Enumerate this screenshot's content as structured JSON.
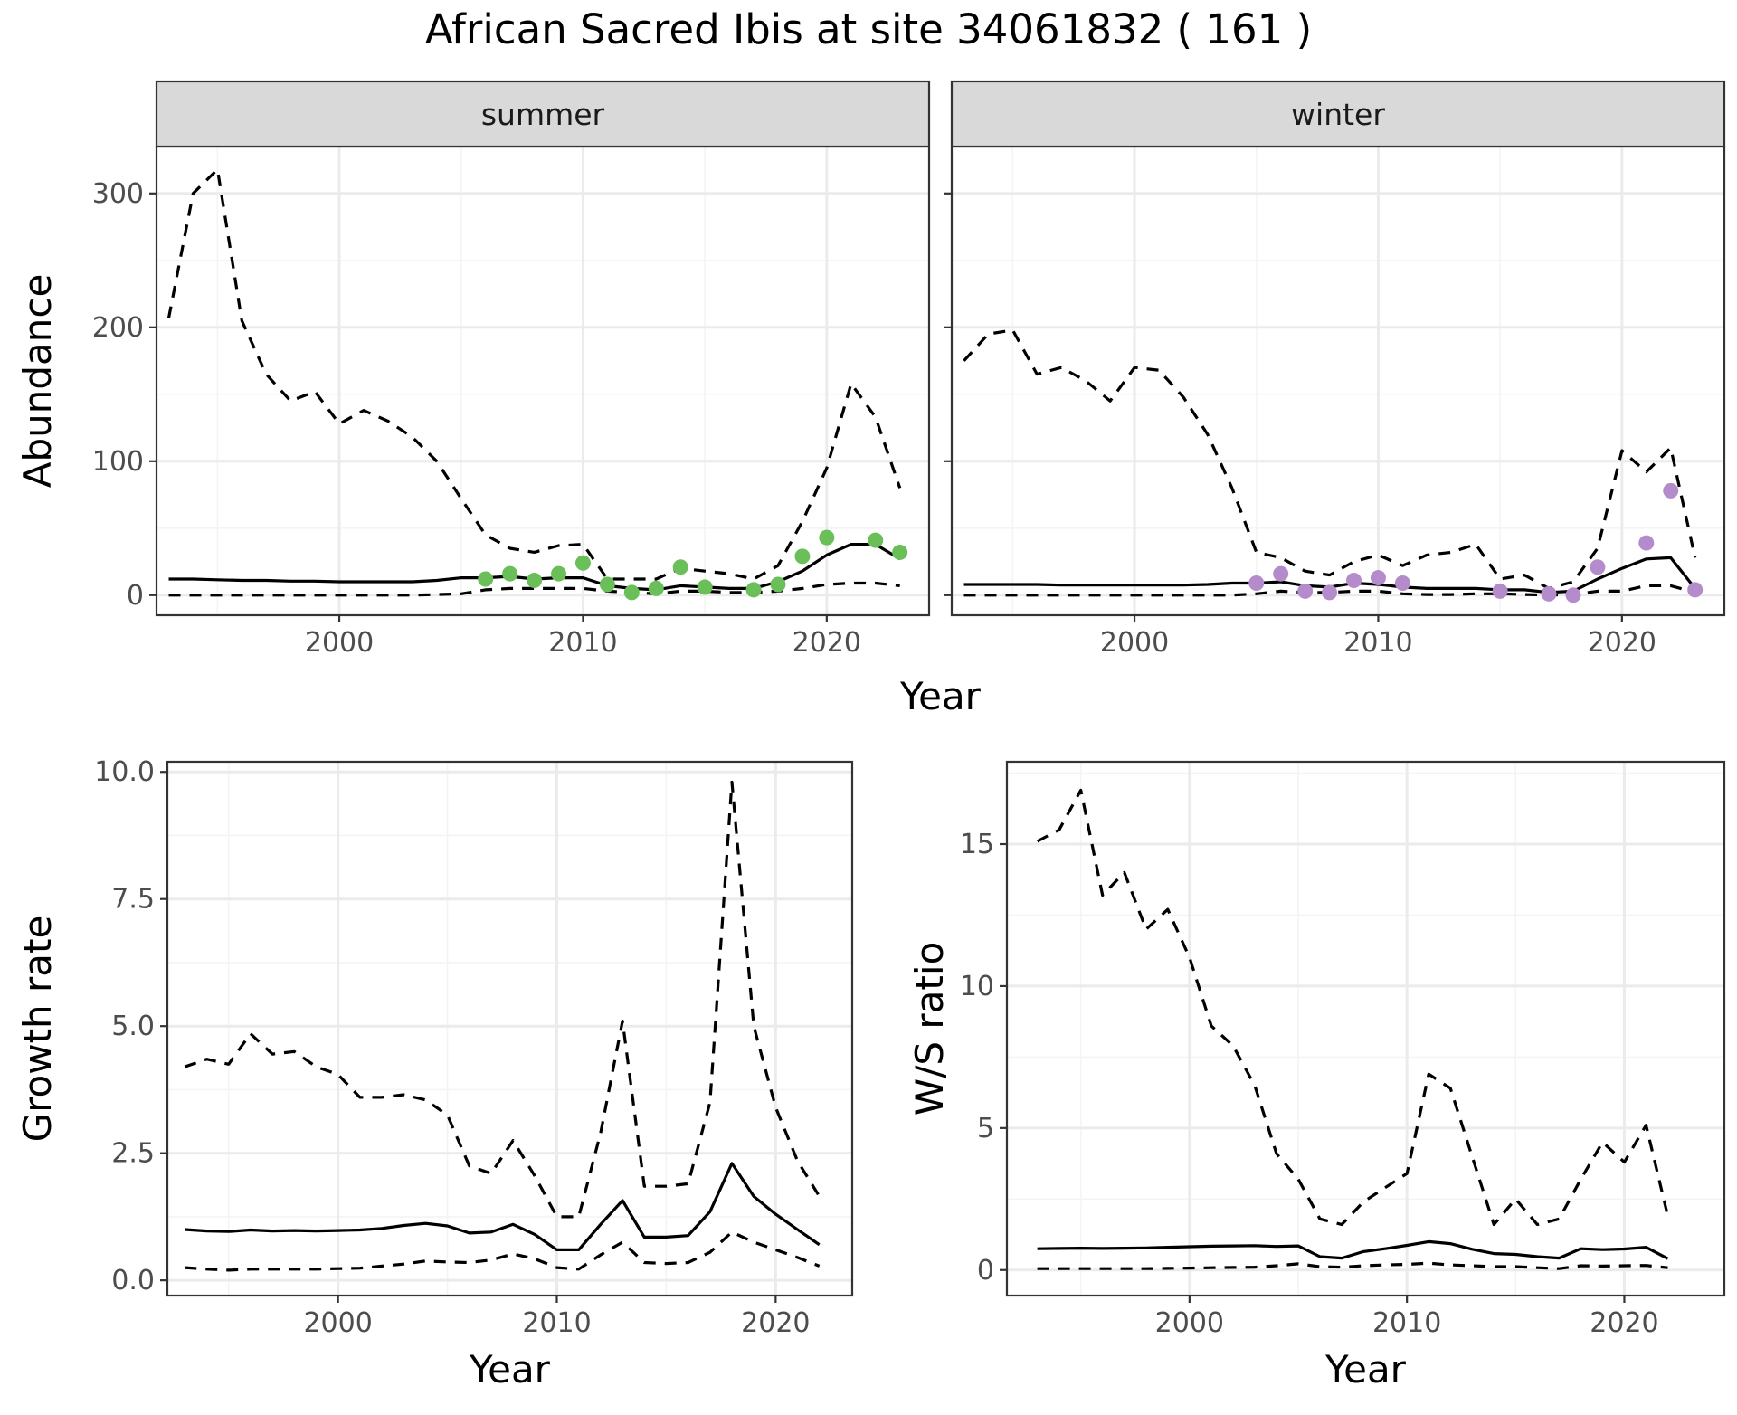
{
  "figure": {
    "title": "African Sacred Ibis at site 34061832 ( 161 )"
  },
  "colors": {
    "summer_points": "#6ABF59",
    "winter_points": "#B48CCB",
    "line": "#000000",
    "grid_major": "#EBEBEB",
    "grid_minor": "#F4F4F4",
    "strip_bg": "#D9D9D9"
  },
  "chart_data": [
    {
      "type": "line",
      "panel": "summer",
      "strip_label": "summer",
      "ylabel": "Abundance",
      "xlabel": "Year",
      "xlim": [
        1992.5,
        2024.2
      ],
      "ylim": [
        -15,
        335
      ],
      "xticks": [
        2000,
        2010,
        2020
      ],
      "xtick_labels": [
        "2000",
        "2010",
        "2020"
      ],
      "yticks": [
        0,
        100,
        200,
        300
      ],
      "ytick_labels": [
        "0",
        "100",
        "200",
        "300"
      ],
      "grid": true,
      "series": [
        {
          "role": "upper",
          "style": "dashed",
          "x": [
            1993,
            1994,
            1995,
            1996,
            1997,
            1998,
            1999,
            2000,
            2001,
            2002,
            2003,
            2004,
            2005,
            2006,
            2007,
            2008,
            2009,
            2010,
            2011,
            2012,
            2013,
            2014,
            2015,
            2016,
            2017,
            2018,
            2019,
            2020,
            2021,
            2022,
            2023
          ],
          "y": [
            207,
            300,
            318,
            205,
            165,
            145,
            152,
            128,
            138,
            130,
            118,
            100,
            72,
            45,
            35,
            32,
            37,
            38,
            12,
            12,
            12,
            20,
            18,
            16,
            12,
            22,
            55,
            95,
            158,
            133,
            80
          ]
        },
        {
          "role": "mean",
          "style": "solid",
          "x": [
            1993,
            1994,
            1995,
            1996,
            1997,
            1998,
            1999,
            2000,
            2001,
            2002,
            2003,
            2004,
            2005,
            2006,
            2007,
            2008,
            2009,
            2010,
            2011,
            2012,
            2013,
            2014,
            2015,
            2016,
            2017,
            2018,
            2019,
            2020,
            2021,
            2022,
            2023
          ],
          "y": [
            12,
            12,
            11.5,
            11,
            11,
            10.5,
            10.5,
            10,
            10,
            10,
            10,
            11,
            13,
            13,
            14,
            12,
            13,
            13,
            7,
            5,
            4,
            7,
            6,
            5,
            5,
            10,
            18,
            30,
            38,
            38,
            27
          ]
        },
        {
          "role": "lower",
          "style": "dashed",
          "x": [
            1993,
            1994,
            1995,
            1996,
            1997,
            1998,
            1999,
            2000,
            2001,
            2002,
            2003,
            2004,
            2005,
            2006,
            2007,
            2008,
            2009,
            2010,
            2011,
            2012,
            2013,
            2014,
            2015,
            2016,
            2017,
            2018,
            2019,
            2020,
            2021,
            2022,
            2023
          ],
          "y": [
            0,
            0,
            0,
            0,
            0,
            0,
            0,
            0,
            0,
            0,
            0,
            0.5,
            1,
            4,
            5,
            5,
            5,
            5,
            3,
            2,
            1,
            3,
            3,
            2,
            2,
            3,
            5,
            8,
            9,
            9,
            7
          ]
        },
        {
          "role": "observed",
          "style": "points",
          "x": [
            2006,
            2007,
            2008,
            2009,
            2010,
            2011,
            2012,
            2013,
            2014,
            2015,
            2017,
            2018,
            2019,
            2020,
            2022,
            2023
          ],
          "y": [
            12,
            16,
            11,
            16,
            24,
            8,
            2,
            5,
            21,
            6,
            4,
            8,
            29,
            43,
            41,
            32
          ]
        }
      ]
    },
    {
      "type": "line",
      "panel": "winter",
      "strip_label": "winter",
      "xlabel": "Year",
      "xlim": [
        1992.5,
        2024.2
      ],
      "ylim": [
        -15,
        335
      ],
      "xticks": [
        2000,
        2010,
        2020
      ],
      "xtick_labels": [
        "2000",
        "2010",
        "2020"
      ],
      "yticks": [
        0,
        100,
        200,
        300
      ],
      "grid": true,
      "series": [
        {
          "role": "upper",
          "style": "dashed",
          "x": [
            1993,
            1994,
            1995,
            1996,
            1997,
            1998,
            1999,
            2000,
            2001,
            2002,
            2003,
            2004,
            2005,
            2006,
            2007,
            2008,
            2009,
            2010,
            2011,
            2012,
            2013,
            2014,
            2015,
            2016,
            2017,
            2018,
            2019,
            2020,
            2021,
            2022,
            2023
          ],
          "y": [
            175,
            195,
            198,
            165,
            170,
            160,
            145,
            170,
            168,
            148,
            120,
            80,
            32,
            28,
            18,
            15,
            25,
            30,
            22,
            30,
            32,
            38,
            12,
            15,
            5,
            10,
            35,
            108,
            92,
            110,
            28
          ]
        },
        {
          "role": "mean",
          "style": "solid",
          "x": [
            1993,
            1994,
            1995,
            1996,
            1997,
            1998,
            1999,
            2000,
            2001,
            2002,
            2003,
            2004,
            2005,
            2006,
            2007,
            2008,
            2009,
            2010,
            2011,
            2012,
            2013,
            2014,
            2015,
            2016,
            2017,
            2018,
            2019,
            2020,
            2021,
            2022,
            2023
          ],
          "y": [
            8,
            8,
            8,
            8,
            7.5,
            7.5,
            7.5,
            7.5,
            7.5,
            7.5,
            8,
            9,
            9,
            10,
            7,
            6,
            9,
            8,
            6,
            5,
            5,
            5,
            4,
            4,
            2,
            3,
            12,
            20,
            27,
            28,
            5
          ]
        },
        {
          "role": "lower",
          "style": "dashed",
          "x": [
            1993,
            1994,
            1995,
            1996,
            1997,
            1998,
            1999,
            2000,
            2001,
            2002,
            2003,
            2004,
            2005,
            2006,
            2007,
            2008,
            2009,
            2010,
            2011,
            2012,
            2013,
            2014,
            2015,
            2016,
            2017,
            2018,
            2019,
            2020,
            2021,
            2022,
            2023
          ],
          "y": [
            0,
            0,
            0,
            0,
            0,
            0,
            0,
            0,
            0,
            0,
            0,
            0,
            1,
            3,
            2,
            2,
            3,
            3,
            1,
            0.5,
            0.5,
            1,
            1,
            0.5,
            0,
            0.5,
            3,
            3,
            7,
            7,
            2
          ]
        },
        {
          "role": "observed",
          "style": "points",
          "x": [
            2005,
            2006,
            2007,
            2008,
            2009,
            2010,
            2011,
            2015,
            2017,
            2018,
            2019,
            2021,
            2022,
            2023
          ],
          "y": [
            9,
            16,
            3,
            2,
            11,
            13,
            9,
            3,
            1,
            0,
            21,
            39,
            78,
            4
          ]
        }
      ]
    },
    {
      "type": "line",
      "panel": "growth",
      "ylabel": "Growth rate",
      "xlabel": "Year",
      "xlim": [
        1992.2,
        2023.5
      ],
      "ylim": [
        -0.3,
        10.2
      ],
      "xticks": [
        2000,
        2010,
        2020
      ],
      "xtick_labels": [
        "2000",
        "2010",
        "2020"
      ],
      "yticks": [
        0,
        2.5,
        5,
        7.5,
        10
      ],
      "ytick_labels": [
        "0.0",
        "2.5",
        "5.0",
        "7.5",
        "10.0"
      ],
      "grid": true,
      "series": [
        {
          "role": "upper",
          "style": "dashed",
          "x": [
            1993,
            1994,
            1995,
            1996,
            1997,
            1998,
            1999,
            2000,
            2001,
            2002,
            2003,
            2004,
            2005,
            2006,
            2007,
            2008,
            2009,
            2010,
            2011,
            2012,
            2013,
            2014,
            2015,
            2016,
            2017,
            2018,
            2019,
            2020,
            2021,
            2022
          ],
          "y": [
            4.2,
            4.35,
            4.25,
            4.85,
            4.45,
            4.5,
            4.2,
            4.05,
            3.6,
            3.6,
            3.65,
            3.55,
            3.25,
            2.25,
            2.1,
            2.75,
            2.05,
            1.25,
            1.25,
            2.9,
            5.1,
            1.85,
            1.85,
            1.9,
            3.5,
            9.8,
            5.0,
            3.4,
            2.35,
            1.65
          ]
        },
        {
          "role": "mean",
          "style": "solid",
          "x": [
            1993,
            1994,
            1995,
            1996,
            1997,
            1998,
            1999,
            2000,
            2001,
            2002,
            2003,
            2004,
            2005,
            2006,
            2007,
            2008,
            2009,
            2010,
            2011,
            2012,
            2013,
            2014,
            2015,
            2016,
            2017,
            2018,
            2019,
            2020,
            2021,
            2022
          ],
          "y": [
            1.0,
            0.97,
            0.96,
            0.99,
            0.97,
            0.98,
            0.97,
            0.98,
            0.99,
            1.02,
            1.08,
            1.12,
            1.07,
            0.93,
            0.95,
            1.1,
            0.9,
            0.6,
            0.6,
            1.1,
            1.57,
            0.85,
            0.85,
            0.88,
            1.35,
            2.3,
            1.65,
            1.3,
            1.0,
            0.7
          ]
        },
        {
          "role": "lower",
          "style": "dashed",
          "x": [
            1993,
            1994,
            1995,
            1996,
            1997,
            1998,
            1999,
            2000,
            2001,
            2002,
            2003,
            2004,
            2005,
            2006,
            2007,
            2008,
            2009,
            2010,
            2011,
            2012,
            2013,
            2014,
            2015,
            2016,
            2017,
            2018,
            2019,
            2020,
            2021,
            2022
          ],
          "y": [
            0.25,
            0.22,
            0.2,
            0.22,
            0.22,
            0.22,
            0.22,
            0.23,
            0.24,
            0.28,
            0.32,
            0.38,
            0.36,
            0.35,
            0.4,
            0.52,
            0.42,
            0.25,
            0.22,
            0.5,
            0.75,
            0.35,
            0.33,
            0.35,
            0.55,
            0.95,
            0.75,
            0.6,
            0.45,
            0.28
          ]
        }
      ]
    },
    {
      "type": "line",
      "panel": "ratio",
      "ylabel": "W/S ratio",
      "xlabel": "Year",
      "xlim": [
        1991.6,
        2024.6
      ],
      "ylim": [
        -0.9,
        17.9
      ],
      "xticks": [
        2000,
        2010,
        2020
      ],
      "xtick_labels": [
        "2000",
        "2010",
        "2020"
      ],
      "yticks": [
        0,
        5,
        10,
        15
      ],
      "ytick_labels": [
        "0",
        "5",
        "10",
        "15"
      ],
      "grid": true,
      "series": [
        {
          "role": "upper",
          "style": "dashed",
          "x": [
            1993,
            1994,
            1995,
            1996,
            1997,
            1998,
            1999,
            2000,
            2001,
            2002,
            2003,
            2004,
            2005,
            2006,
            2007,
            2008,
            2009,
            2010,
            2011,
            2012,
            2013,
            2014,
            2015,
            2016,
            2017,
            2018,
            2019,
            2020,
            2021,
            2022
          ],
          "y": [
            15.1,
            15.5,
            16.9,
            13.2,
            14.0,
            12.0,
            12.7,
            11.0,
            8.6,
            7.9,
            6.5,
            4.1,
            3.2,
            1.8,
            1.6,
            2.4,
            2.9,
            3.4,
            6.9,
            6.4,
            4.0,
            1.6,
            2.5,
            1.6,
            1.8,
            3.2,
            4.5,
            3.8,
            5.1,
            1.9
          ]
        },
        {
          "role": "mean",
          "style": "solid",
          "x": [
            1993,
            1994,
            1995,
            1996,
            1997,
            1998,
            1999,
            2000,
            2001,
            2002,
            2003,
            2004,
            2005,
            2006,
            2007,
            2008,
            2009,
            2010,
            2011,
            2012,
            2013,
            2014,
            2015,
            2016,
            2017,
            2018,
            2019,
            2020,
            2021,
            2022
          ],
          "y": [
            0.75,
            0.76,
            0.77,
            0.76,
            0.77,
            0.78,
            0.8,
            0.82,
            0.84,
            0.85,
            0.86,
            0.83,
            0.85,
            0.47,
            0.42,
            0.65,
            0.75,
            0.87,
            1.0,
            0.93,
            0.73,
            0.58,
            0.55,
            0.47,
            0.42,
            0.75,
            0.72,
            0.74,
            0.8,
            0.4
          ]
        },
        {
          "role": "lower",
          "style": "dashed",
          "x": [
            1993,
            1994,
            1995,
            1996,
            1997,
            1998,
            1999,
            2000,
            2001,
            2002,
            2003,
            2004,
            2005,
            2006,
            2007,
            2008,
            2009,
            2010,
            2011,
            2012,
            2013,
            2014,
            2015,
            2016,
            2017,
            2018,
            2019,
            2020,
            2021,
            2022
          ],
          "y": [
            0.05,
            0.05,
            0.05,
            0.05,
            0.05,
            0.05,
            0.06,
            0.07,
            0.08,
            0.09,
            0.1,
            0.15,
            0.22,
            0.12,
            0.1,
            0.15,
            0.18,
            0.2,
            0.24,
            0.18,
            0.15,
            0.12,
            0.12,
            0.08,
            0.05,
            0.15,
            0.14,
            0.15,
            0.16,
            0.08
          ]
        }
      ]
    }
  ]
}
